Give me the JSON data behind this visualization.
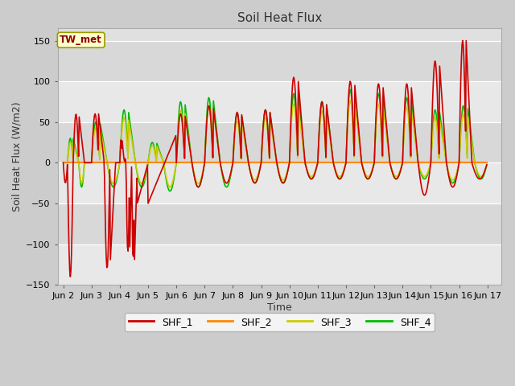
{
  "title": "Soil Heat Flux",
  "xlabel": "Time",
  "ylabel": "Soil Heat Flux (W/m2)",
  "ylim": [
    -150,
    165
  ],
  "yticks": [
    -150,
    -100,
    -50,
    0,
    50,
    100,
    150
  ],
  "fig_bg": "#cccccc",
  "plot_bg": "#e0e0e0",
  "plot_bg_alt": "#d0d0d0",
  "legend_label": "TW_met",
  "legend_box_facecolor": "#ffffcc",
  "legend_box_edgecolor": "#999900",
  "legend_text_color": "#8b0000",
  "shf1_color": "#cc0000",
  "shf2_color": "#ff8800",
  "shf3_color": "#cccc00",
  "shf4_color": "#00bb00",
  "xtick_labels": [
    "Jun 2",
    "Jun 3",
    "Jun 4",
    "Jun 5",
    "Jun 6",
    "Jun 7",
    "Jun 8",
    "Jun 9",
    "Jun 10",
    "Jun 11",
    "Jun 12",
    "Jun 13",
    "Jun 14",
    "Jun 15",
    "Jun 16",
    "Jun 17"
  ],
  "xtick_positions": [
    0,
    1,
    2,
    3,
    4,
    5,
    6,
    7,
    8,
    9,
    10,
    11,
    12,
    13,
    14,
    15
  ]
}
